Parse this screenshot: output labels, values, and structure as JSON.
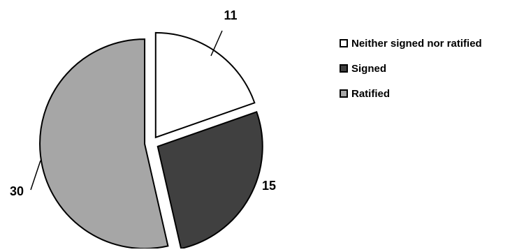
{
  "chart_data": {
    "type": "pie",
    "exploded": true,
    "series": [
      {
        "name": "Neither signed nor ratified",
        "value": 11,
        "color": "#ffffff"
      },
      {
        "name": "Signed",
        "value": 15,
        "color": "#404040"
      },
      {
        "name": "Ratified",
        "value": 30,
        "color": "#a6a6a6"
      }
    ],
    "data_labels": [
      "11",
      "15",
      "30"
    ],
    "legend_position": "right",
    "title": ""
  }
}
